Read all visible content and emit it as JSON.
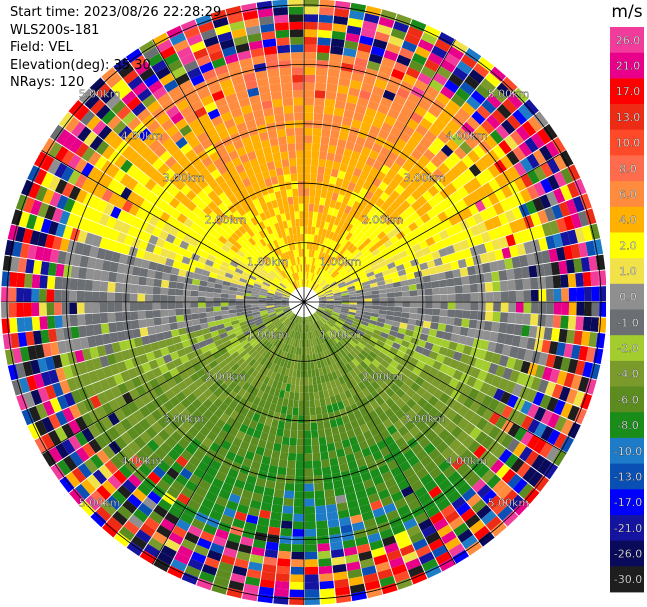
{
  "info": {
    "start_time": "Start time: 2023/08/26 22:28:29",
    "site": "WLS200s-181",
    "field": "Field: VEL",
    "elevation": "Elevation(deg): 35.30",
    "nrays": "NRays: 120"
  },
  "colorbar": {
    "unit": "m/s",
    "bins": [
      {
        "label": "26.0",
        "color": "#f23c9b"
      },
      {
        "label": "21.0",
        "color": "#e8008a"
      },
      {
        "label": "17.0",
        "color": "#ff0000"
      },
      {
        "label": "13.0",
        "color": "#ee2c16"
      },
      {
        "label": "10.0",
        "color": "#ff4a2a"
      },
      {
        "label": "8.0",
        "color": "#ff6b4d"
      },
      {
        "label": "6.0",
        "color": "#ff8c3e"
      },
      {
        "label": "4.0",
        "color": "#ffb000"
      },
      {
        "label": "2.0",
        "color": "#ffff00"
      },
      {
        "label": "1.0",
        "color": "#f2e24a"
      },
      {
        "label": "0.0",
        "color": "#8f8f8f"
      },
      {
        "label": "-1.0",
        "color": "#6b6f73"
      },
      {
        "label": "-2.0",
        "color": "#a3cc2e"
      },
      {
        "label": "-4.0",
        "color": "#7a9a2c"
      },
      {
        "label": "-6.0",
        "color": "#5c8c1f"
      },
      {
        "label": "-8.0",
        "color": "#1a8c1a"
      },
      {
        "label": "-10.0",
        "color": "#1e7bc8"
      },
      {
        "label": "-13.0",
        "color": "#0a4fb4"
      },
      {
        "label": "-17.0",
        "color": "#0000ff"
      },
      {
        "label": "-21.0",
        "color": "#1414a0"
      },
      {
        "label": "-26.0",
        "color": "#0a0a5a"
      },
      {
        "label": "-30.0",
        "color": "#1e1e1e"
      }
    ]
  },
  "chart_data": {
    "type": "heatmap",
    "subtype": "ppi-radial-velocity",
    "field": "VEL",
    "unit": "m/s",
    "elevation_deg": 35.3,
    "nrays": 120,
    "range_rings_km": [
      1.0,
      2.0,
      3.0,
      4.0,
      5.0
    ],
    "ring_labels": [
      "1.00km",
      "2.00km",
      "3.00km",
      "4.00km",
      "5.00km"
    ],
    "max_range_km": 5.1,
    "radial_lines_deg": [
      0,
      30,
      60,
      90,
      120,
      150,
      180,
      210,
      240,
      270,
      300,
      330
    ],
    "velocity_pattern": {
      "north_half_approx_mps": 6,
      "south_half_approx_mps": -6,
      "near_zero_band": "east-west",
      "noise_beyond_km": 4.2
    }
  }
}
